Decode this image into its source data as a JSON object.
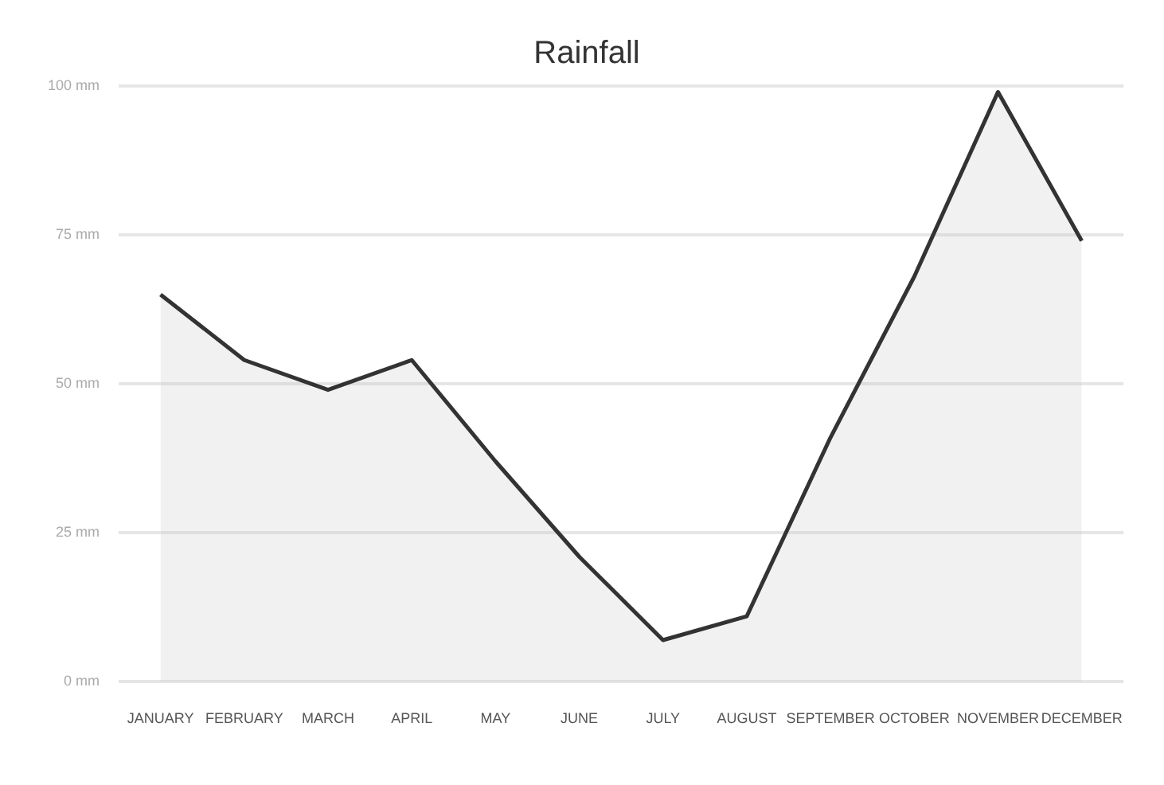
{
  "chart_data": {
    "type": "area",
    "title": "Rainfall",
    "categories": [
      "JANUARY",
      "FEBRUARY",
      "MARCH",
      "APRIL",
      "MAY",
      "JUNE",
      "JULY",
      "AUGUST",
      "SEPTEMBER",
      "OCTOBER",
      "NOVEMBER",
      "DECEMBER"
    ],
    "series": [
      {
        "color": "#333333",
        "values": [
          65,
          54,
          49,
          54,
          37,
          21,
          7,
          11,
          41,
          68,
          99,
          74
        ]
      }
    ],
    "ylim": [
      0,
      100
    ],
    "yticks": [
      {
        "value": 0,
        "label": "0 mm"
      },
      {
        "value": 25,
        "label": "25 mm"
      },
      {
        "value": 50,
        "label": "50 mm"
      },
      {
        "value": 75,
        "label": "75 mm"
      },
      {
        "value": 100,
        "label": "100 mm"
      }
    ],
    "grid": "y",
    "legend": false,
    "marker": "none",
    "line_style": "solid"
  }
}
